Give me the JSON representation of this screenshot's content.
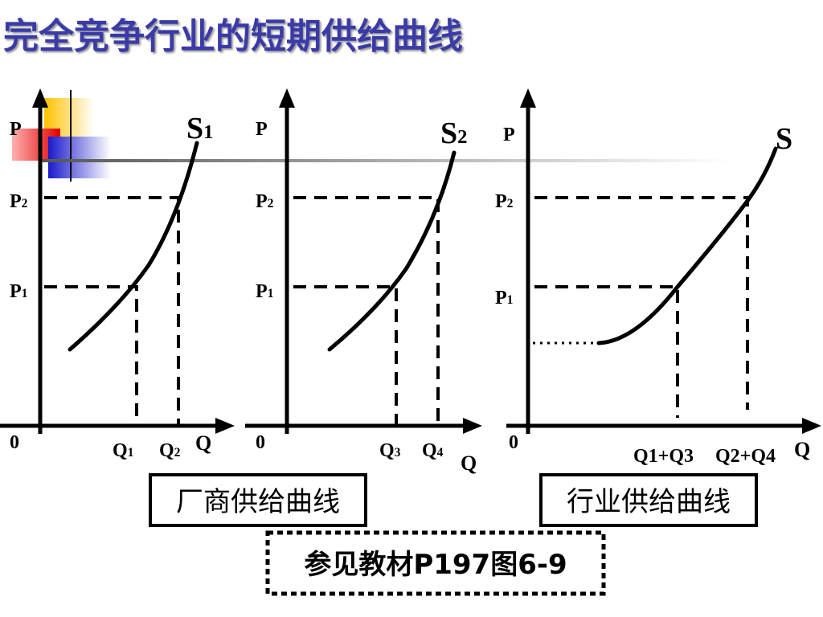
{
  "title": "完全竞争行业的短期供给曲线",
  "panels": [
    {
      "p_axis": "P",
      "curve": {
        "base": "S",
        "sub": "1"
      },
      "price_levels": [
        {
          "base": "P",
          "sub": "2"
        },
        {
          "base": "P",
          "sub": "1"
        }
      ],
      "origin": "0",
      "quantities": [
        {
          "base": "Q",
          "sub": "1"
        },
        {
          "base": "Q",
          "sub": "2"
        }
      ],
      "q_axis": "Q"
    },
    {
      "p_axis": "P",
      "curve": {
        "base": "S",
        "sub": "2"
      },
      "price_levels": [
        {
          "base": "P",
          "sub": "2"
        },
        {
          "base": "P",
          "sub": "1"
        }
      ],
      "origin": "0",
      "quantities": [
        {
          "base": "Q",
          "sub": "3"
        },
        {
          "base": "Q",
          "sub": "4"
        }
      ],
      "q_axis": "Q"
    },
    {
      "p_axis": "P",
      "curve": {
        "base": "S"
      },
      "price_levels": [
        {
          "base": "P",
          "sub": "2"
        },
        {
          "base": "P",
          "sub": "1"
        }
      ],
      "origin": "0",
      "quantities": [
        {
          "base": "Q1+Q3"
        },
        {
          "base": "Q2+Q4"
        }
      ],
      "q_axis": "Q"
    }
  ],
  "captions": [
    "厂商供给曲线",
    "行业供给曲线"
  ],
  "reference": "参见教材P197图6-9"
}
